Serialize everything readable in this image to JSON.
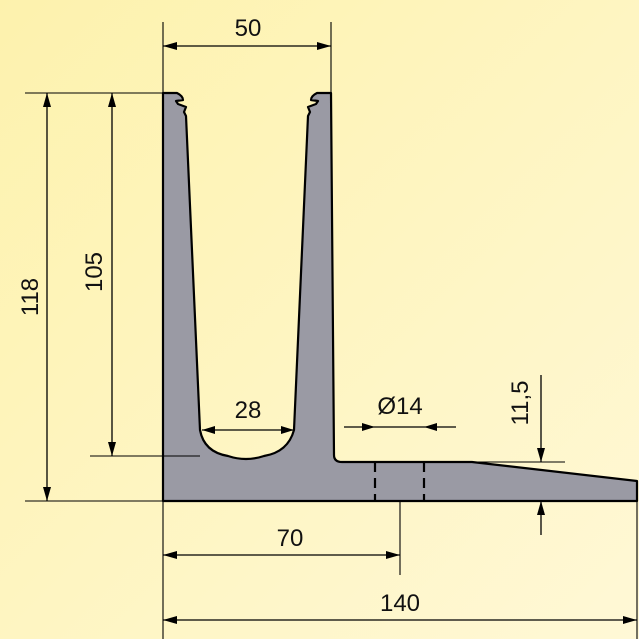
{
  "colors": {
    "background_top": "#fdf4b4",
    "background_bottom": "#fff8d2",
    "profile_fill": "#9a9aa4",
    "line": "#000000"
  },
  "dimensions": {
    "top_width": "50",
    "total_height": "118",
    "inner_height": "105",
    "inner_width": "28",
    "hole_diameter": "Ø14",
    "flange_thickness": "11,5",
    "hole_offset": "70",
    "total_width": "140"
  }
}
